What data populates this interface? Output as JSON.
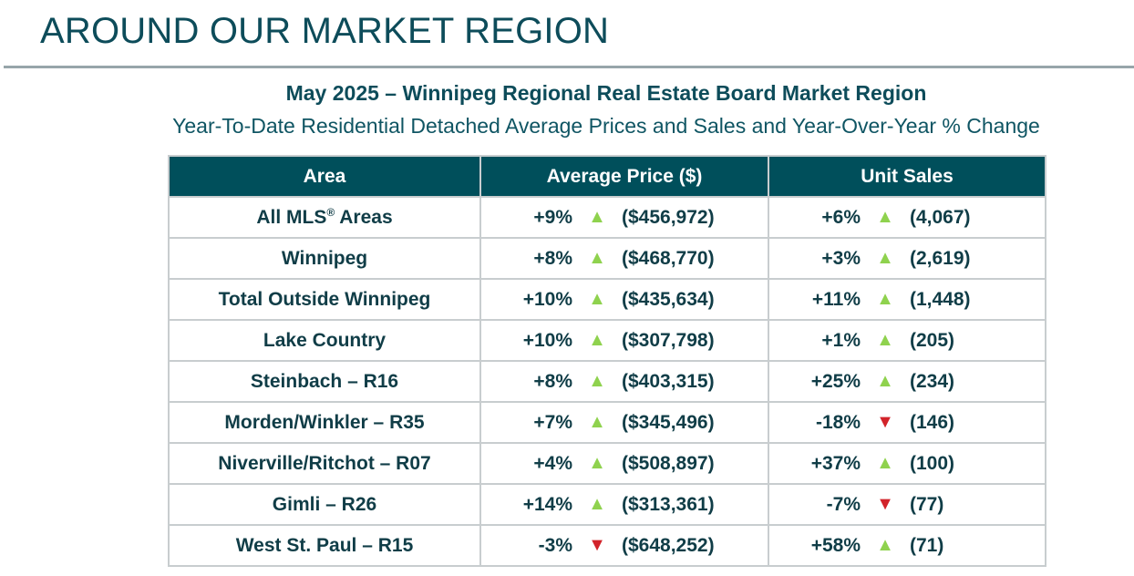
{
  "heading": "AROUND OUR MARKET REGION",
  "title": "May 2025 – Winnipeg Regional Real Estate Board Market Region",
  "subtitle": "Year-To-Date Residential Detached Average Prices and Sales and Year-Over-Year % Change",
  "colors": {
    "header_bg": "#004f5b",
    "text": "#103d47",
    "up": "#8fd24e",
    "down": "#d2232a"
  },
  "table": {
    "headers": [
      "Area",
      "Average Price ($)",
      "Unit Sales"
    ],
    "rows": [
      {
        "area": "All MLS",
        "area_sup": "®",
        "area_suffix": " Areas",
        "price_pct": "+9%",
        "price_dir": "up",
        "price": "($456,972)",
        "sales_pct": "+6%",
        "sales_dir": "up",
        "sales": "(4,067)"
      },
      {
        "area": "Winnipeg",
        "price_pct": "+8%",
        "price_dir": "up",
        "price": "($468,770)",
        "sales_pct": "+3%",
        "sales_dir": "up",
        "sales": "(2,619)"
      },
      {
        "area": "Total Outside Winnipeg",
        "price_pct": "+10%",
        "price_dir": "up",
        "price": "($435,634)",
        "sales_pct": "+11%",
        "sales_dir": "up",
        "sales": "(1,448)"
      },
      {
        "area": "Lake Country",
        "price_pct": "+10%",
        "price_dir": "up",
        "price": "($307,798)",
        "sales_pct": "+1%",
        "sales_dir": "up",
        "sales": "(205)"
      },
      {
        "area": "Steinbach – R16",
        "price_pct": "+8%",
        "price_dir": "up",
        "price": "($403,315)",
        "sales_pct": "+25%",
        "sales_dir": "up",
        "sales": "(234)"
      },
      {
        "area": "Morden/Winkler – R35",
        "price_pct": "+7%",
        "price_dir": "up",
        "price": "($345,496)",
        "sales_pct": "-18%",
        "sales_dir": "down",
        "sales": "(146)"
      },
      {
        "area": "Niverville/Ritchot – R07",
        "price_pct": "+4%",
        "price_dir": "up",
        "price": "($508,897)",
        "sales_pct": "+37%",
        "sales_dir": "up",
        "sales": "(100)"
      },
      {
        "area": "Gimli – R26",
        "price_pct": "+14%",
        "price_dir": "up",
        "price": "($313,361)",
        "sales_pct": "-7%",
        "sales_dir": "down",
        "sales": "(77)"
      },
      {
        "area": "West St. Paul – R15",
        "price_pct": "-3%",
        "price_dir": "down",
        "price": "($648,252)",
        "sales_pct": "+58%",
        "sales_dir": "up",
        "sales": "(71)"
      }
    ]
  }
}
